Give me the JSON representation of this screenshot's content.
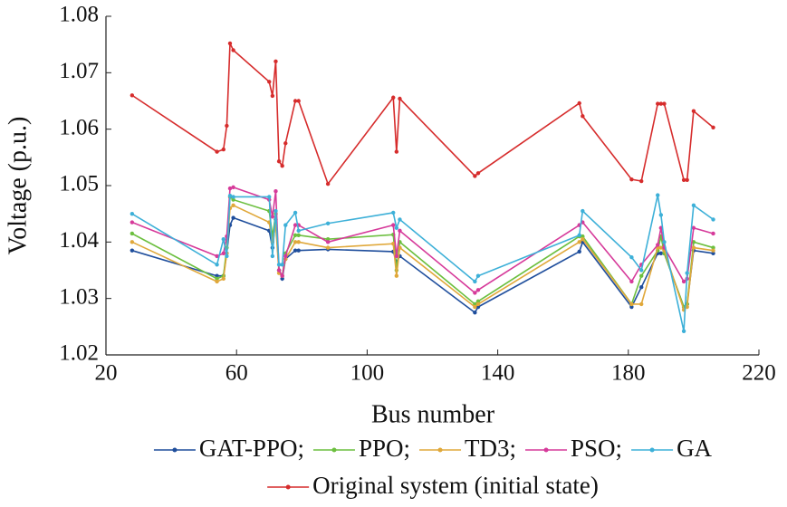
{
  "chart_data": {
    "type": "line",
    "x_label": "Bus number",
    "y_label": "Voltage (p.u.)",
    "x": [
      28,
      54,
      56,
      57,
      58,
      59,
      70,
      71,
      72,
      73,
      74,
      75,
      78,
      79,
      88,
      108,
      109,
      110,
      133,
      134,
      165,
      166,
      181,
      184,
      189,
      190,
      191,
      197,
      198,
      200,
      206
    ],
    "series": [
      {
        "name": "GAT-PPO;",
        "color": "#1f4e9c",
        "values": [
          1.0385,
          1.034,
          1.034,
          1.038,
          1.043,
          1.0443,
          1.042,
          1.039,
          1.044,
          1.035,
          1.0335,
          1.037,
          1.0385,
          1.0385,
          1.0387,
          1.0383,
          1.0365,
          1.0375,
          1.0275,
          1.0285,
          1.0383,
          1.04,
          1.0285,
          1.032,
          1.038,
          1.038,
          1.038,
          1.0285,
          1.029,
          1.0385,
          1.038
        ]
      },
      {
        "name": "PPO;",
        "color": "#6cbf3f",
        "values": [
          1.0415,
          1.0335,
          1.034,
          1.039,
          1.048,
          1.0475,
          1.0455,
          1.041,
          1.045,
          1.035,
          1.034,
          1.038,
          1.0412,
          1.0412,
          1.0405,
          1.0413,
          1.035,
          1.04,
          1.029,
          1.0295,
          1.041,
          1.041,
          1.029,
          1.034,
          1.0385,
          1.041,
          1.038,
          1.0285,
          1.029,
          1.04,
          1.039
        ]
      },
      {
        "name": "TD3;",
        "color": "#e0a83a",
        "values": [
          1.04,
          1.033,
          1.0335,
          1.038,
          1.046,
          1.0465,
          1.0435,
          1.04,
          1.043,
          1.0345,
          1.034,
          1.037,
          1.04,
          1.04,
          1.039,
          1.0397,
          1.034,
          1.039,
          1.0285,
          1.029,
          1.04,
          1.0405,
          1.029,
          1.029,
          1.039,
          1.039,
          1.0385,
          1.028,
          1.0285,
          1.039,
          1.0385
        ]
      },
      {
        "name": "PSO;",
        "color": "#d63a9a",
        "values": [
          1.0435,
          1.0375,
          1.038,
          1.041,
          1.0495,
          1.0497,
          1.0475,
          1.0445,
          1.049,
          1.035,
          1.034,
          1.0375,
          1.043,
          1.043,
          1.04,
          1.043,
          1.0375,
          1.042,
          1.031,
          1.0315,
          1.043,
          1.0435,
          1.033,
          1.036,
          1.0395,
          1.0425,
          1.039,
          1.033,
          1.0335,
          1.0425,
          1.0415
        ]
      },
      {
        "name": "GA",
        "color": "#3db0d8",
        "values": [
          1.045,
          1.036,
          1.0405,
          1.0375,
          1.0482,
          1.048,
          1.048,
          1.0375,
          1.0455,
          1.036,
          1.036,
          1.043,
          1.0452,
          1.042,
          1.0433,
          1.0452,
          1.0425,
          1.044,
          1.033,
          1.034,
          1.0412,
          1.0455,
          1.0373,
          1.035,
          1.0483,
          1.0448,
          1.04,
          1.0242,
          1.0345,
          1.0465,
          1.044
        ]
      },
      {
        "name": "Original system (initial state)",
        "color": "#d62c2c",
        "values": [
          1.066,
          1.056,
          1.0564,
          1.0606,
          1.0752,
          1.074,
          1.0684,
          1.0659,
          1.072,
          1.0543,
          1.0535,
          1.0575,
          1.065,
          1.065,
          1.0503,
          1.0656,
          1.056,
          1.0654,
          1.0517,
          1.0522,
          1.0646,
          1.0623,
          1.0511,
          1.0508,
          1.0645,
          1.0645,
          1.0645,
          1.051,
          1.051,
          1.0632,
          1.0603
        ]
      }
    ],
    "xlim": [
      20,
      220
    ],
    "xticks": [
      20,
      60,
      100,
      140,
      180,
      220
    ],
    "ylim": [
      1.02,
      1.08
    ],
    "yticks": [
      1.02,
      1.03,
      1.04,
      1.05,
      1.06,
      1.07,
      1.08
    ],
    "grid": false
  }
}
